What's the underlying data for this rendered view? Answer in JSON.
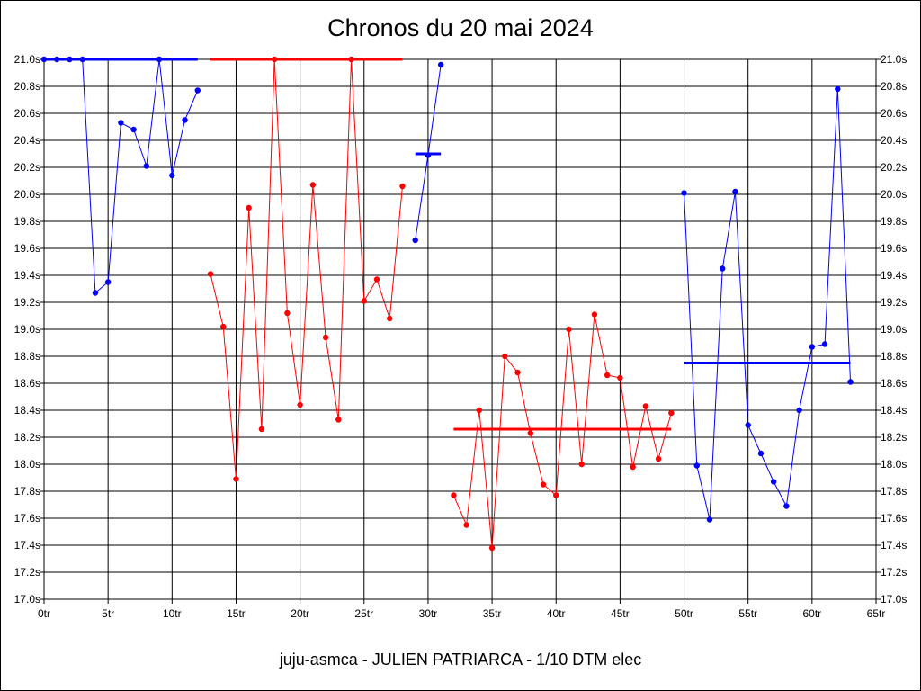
{
  "chart_data": {
    "type": "line",
    "title": "Chronos du 20 mai 2024",
    "subtitle": "juju-asmca - JULIEN PATRIARCA - 1/10 DTM elec",
    "xlabel": "",
    "ylabel": "",
    "xlim": [
      0,
      65
    ],
    "ylim": [
      17.0,
      21.0
    ],
    "x_ticks": [
      {
        "value": 0,
        "label": "0tr"
      },
      {
        "value": 5,
        "label": "5tr"
      },
      {
        "value": 10,
        "label": "10tr"
      },
      {
        "value": 15,
        "label": "15tr"
      },
      {
        "value": 20,
        "label": "20tr"
      },
      {
        "value": 25,
        "label": "25tr"
      },
      {
        "value": 30,
        "label": "30tr"
      },
      {
        "value": 35,
        "label": "35tr"
      },
      {
        "value": 40,
        "label": "40tr"
      },
      {
        "value": 45,
        "label": "45tr"
      },
      {
        "value": 50,
        "label": "50tr"
      },
      {
        "value": 55,
        "label": "55tr"
      },
      {
        "value": 60,
        "label": "60tr"
      },
      {
        "value": 65,
        "label": "65tr"
      }
    ],
    "y_ticks": [
      {
        "value": 17.0,
        "label": "17.0s"
      },
      {
        "value": 17.2,
        "label": "17.2s"
      },
      {
        "value": 17.4,
        "label": "17.4s"
      },
      {
        "value": 17.6,
        "label": "17.6s"
      },
      {
        "value": 17.8,
        "label": "17.8s"
      },
      {
        "value": 18.0,
        "label": "18.0s"
      },
      {
        "value": 18.2,
        "label": "18.2s"
      },
      {
        "value": 18.4,
        "label": "18.4s"
      },
      {
        "value": 18.6,
        "label": "18.6s"
      },
      {
        "value": 18.8,
        "label": "18.8s"
      },
      {
        "value": 19.0,
        "label": "19.0s"
      },
      {
        "value": 19.2,
        "label": "19.2s"
      },
      {
        "value": 19.4,
        "label": "19.4s"
      },
      {
        "value": 19.6,
        "label": "19.6s"
      },
      {
        "value": 19.8,
        "label": "19.8s"
      },
      {
        "value": 20.0,
        "label": "20.0s"
      },
      {
        "value": 20.2,
        "label": "20.2s"
      },
      {
        "value": 20.4,
        "label": "20.4s"
      },
      {
        "value": 20.6,
        "label": "20.6s"
      },
      {
        "value": 20.8,
        "label": "20.8s"
      },
      {
        "value": 21.0,
        "label": "21.0s"
      }
    ],
    "grid": true,
    "legend": "none",
    "series": [
      {
        "color": "#0000ff",
        "x": [
          0,
          1,
          2,
          3,
          4,
          5,
          6,
          7,
          8,
          9,
          10,
          11,
          12
        ],
        "values": [
          21.0,
          21.0,
          21.0,
          21.0,
          19.27,
          19.35,
          20.53,
          20.48,
          20.21,
          21.0,
          20.14,
          20.55,
          20.77
        ],
        "mean": 21.0
      },
      {
        "color": "#ff0000",
        "x": [
          13,
          14,
          15,
          16,
          17,
          18,
          19,
          20,
          21,
          22,
          23,
          24,
          25,
          26,
          27,
          28
        ],
        "values": [
          19.41,
          19.02,
          17.89,
          19.9,
          18.26,
          21.0,
          19.12,
          18.44,
          20.07,
          18.94,
          18.33,
          21.0,
          19.21,
          19.37,
          19.08,
          20.06
        ],
        "mean": 21.0
      },
      {
        "color": "#0000ff",
        "x": [
          29,
          30,
          31
        ],
        "values": [
          19.66,
          20.29,
          20.96
        ],
        "mean": 20.3
      },
      {
        "color": "#ff0000",
        "x": [
          32,
          33,
          34,
          35,
          36,
          37,
          38,
          39,
          40,
          41,
          42,
          43,
          44,
          45,
          46,
          47,
          48,
          49
        ],
        "values": [
          17.77,
          17.55,
          18.4,
          17.38,
          18.8,
          18.68,
          18.23,
          17.85,
          17.77,
          19.0,
          18.0,
          19.11,
          18.66,
          18.64,
          17.98,
          18.43,
          18.04,
          18.38
        ],
        "mean": 18.26
      },
      {
        "color": "#0000ff",
        "x": [
          50,
          51,
          52,
          53,
          54,
          55,
          56,
          57,
          58,
          59,
          60,
          61,
          62,
          63
        ],
        "values": [
          20.01,
          17.99,
          17.59,
          19.45,
          20.02,
          18.29,
          18.08,
          17.87,
          17.69,
          18.4,
          18.87,
          18.89,
          20.78,
          18.61
        ],
        "mean": 18.75
      }
    ]
  }
}
